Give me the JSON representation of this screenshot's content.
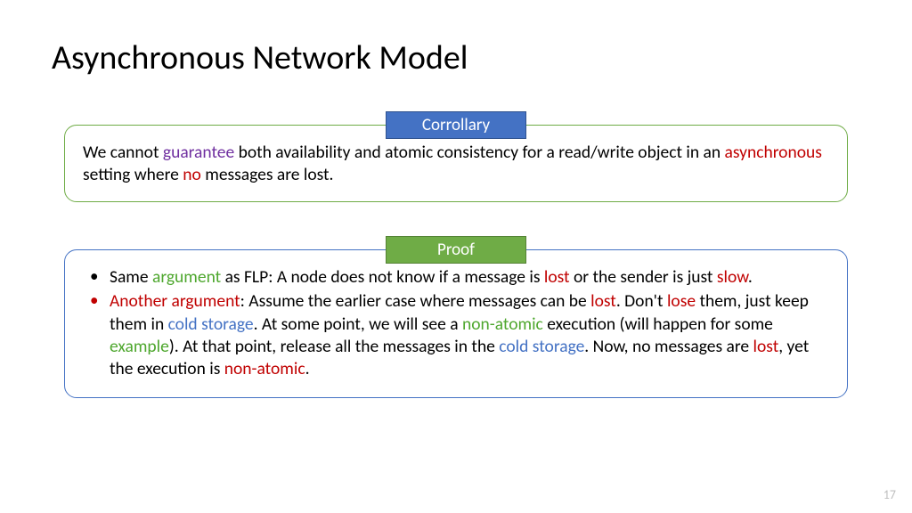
{
  "title": "Asynchronous Network Model",
  "pageNumber": "17",
  "corollary": {
    "label": "Corrollary",
    "t1": "We cannot ",
    "w1": "guarantee",
    "t2": " both availability and atomic consistency for a read/write object in an ",
    "w2": "asynchronous",
    "t3": " setting where ",
    "w3": "no",
    "t4": " messages are lost."
  },
  "proof": {
    "label": "Proof",
    "b1": {
      "t1": "Same ",
      "w1": "argument",
      "t2": " as FLP: A node does not know if a message is ",
      "w2": "lost",
      "t3": " or the sender is just ",
      "w3": "slow",
      "t4": "."
    },
    "b2": {
      "w1": "Another argument",
      "t1": ": Assume the earlier case where messages can be ",
      "w2": "lost",
      "t2": ". Don't ",
      "w3": "lose",
      "t3": " them, just keep them in ",
      "w4": "cold storage",
      "t4": ". At some point, we will see a ",
      "w5": "non-atomic",
      "t5": " execution (will happen for some ",
      "w6": "example",
      "t6": "). At that point, release all the messages in the ",
      "w7": "cold storage",
      "t7": ". Now, no messages are ",
      "w8": "lost",
      "t8": ", yet the execution is ",
      "w9": "non-atomic",
      "t9": "."
    }
  }
}
